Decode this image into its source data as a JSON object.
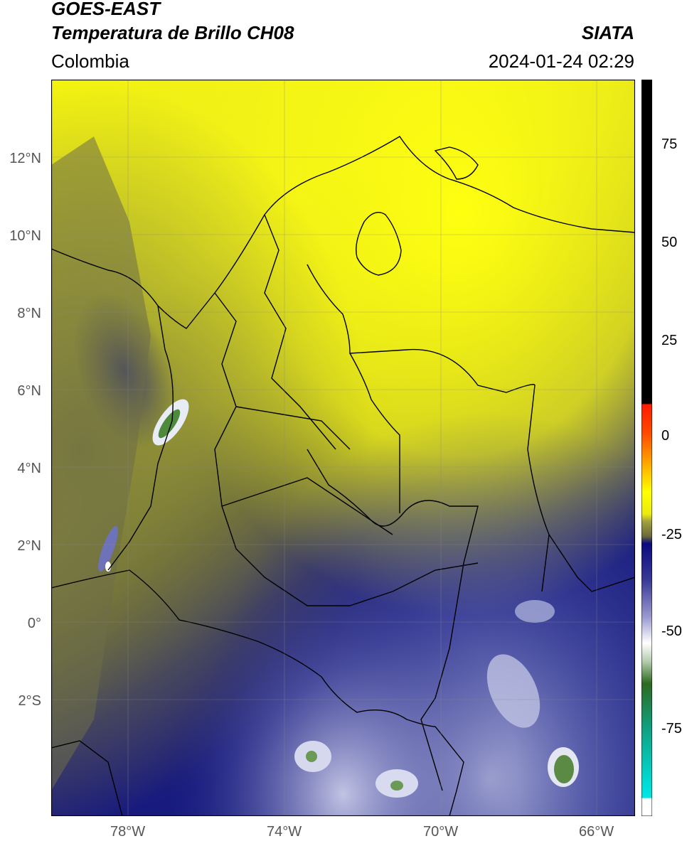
{
  "header": {
    "satellite": "GOES-EAST",
    "product": "Temperatura de Brillo CH08",
    "source": "SIATA",
    "region": "Colombia",
    "datetime": "2024-01-24 02:29"
  },
  "map": {
    "lat_range": [
      -5.0,
      14.0
    ],
    "lon_range": [
      -80.0,
      -65.0
    ],
    "lat_ticks": [
      "12°N",
      "10°N",
      "8°N",
      "6°N",
      "4°N",
      "2°N",
      "0°",
      "2°S"
    ],
    "lon_ticks": [
      "78°W",
      "74°W",
      "70°W",
      "66°W"
    ],
    "gridlines": true,
    "colors": {
      "background_cold": "#141a7a",
      "mid_olive": "#6c6c3a",
      "warm_yellow": "#ffff10",
      "white_tops": "#f2f2f8",
      "green_tops": "#4e8a3c",
      "borders": "#000000"
    }
  },
  "colorbar": {
    "ticks": [
      "75",
      "50",
      "25",
      "0",
      "-25",
      "-50",
      "-75"
    ],
    "tick_values": [
      75,
      50,
      25,
      0,
      -25,
      -50,
      -75
    ],
    "range": [
      -95,
      90
    ],
    "colors": {
      "black": "#000000",
      "red": "#ff1a00",
      "orange": "#ffa500",
      "yellow": "#ffff00",
      "olive": "#6a6a3a",
      "navy": "#0a0a80",
      "white": "#ffffff",
      "green": "#2d6a1f",
      "teal": "#10c0a0",
      "cyan": "#00e5e5"
    }
  }
}
